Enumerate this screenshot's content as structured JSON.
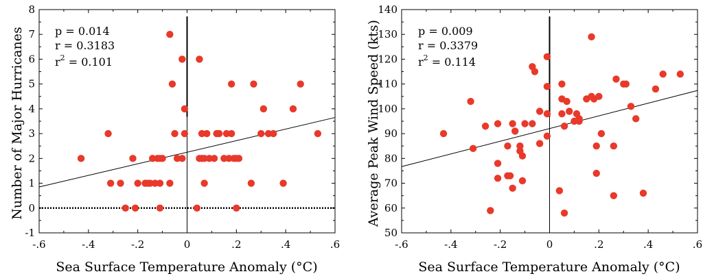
{
  "colors": {
    "point": "#e8392a",
    "axis": "#000000",
    "background": "#ffffff"
  },
  "chart_data": [
    {
      "type": "scatter",
      "xlabel": "Sea Surface Temperature Anomaly (°C)",
      "ylabel": "Number of Major Hurricanes",
      "xlim": [
        -0.6,
        0.6
      ],
      "ylim": [
        -1,
        8
      ],
      "xticks": [
        "-.6",
        "-.4",
        "-.2",
        "0",
        ".2",
        ".4",
        ".6"
      ],
      "yticks": [
        "-1",
        "0",
        "1",
        "2",
        "3",
        "4",
        "5",
        "6",
        "7",
        "8"
      ],
      "grid": false,
      "stats": {
        "p": "p = 0.014",
        "r": "r = 0.3183",
        "r2_prefix": "r",
        "r2_sup": "2",
        "r2_value": " = 0.101"
      },
      "regression": {
        "x": [
          -0.6,
          0.6
        ],
        "y": [
          0.85,
          3.65
        ]
      },
      "zero_line_style": "dotted",
      "points": [
        [
          -0.43,
          2
        ],
        [
          -0.32,
          3
        ],
        [
          -0.31,
          1
        ],
        [
          -0.27,
          1
        ],
        [
          -0.25,
          0
        ],
        [
          -0.22,
          2
        ],
        [
          -0.21,
          0
        ],
        [
          -0.2,
          1
        ],
        [
          -0.17,
          1
        ],
        [
          -0.16,
          1
        ],
        [
          -0.15,
          1
        ],
        [
          -0.14,
          2
        ],
        [
          -0.13,
          1
        ],
        [
          -0.12,
          2
        ],
        [
          -0.11,
          2
        ],
        [
          -0.1,
          2
        ],
        [
          -0.11,
          1
        ],
        [
          -0.11,
          0
        ],
        [
          -0.07,
          1
        ],
        [
          -0.07,
          7
        ],
        [
          -0.06,
          5
        ],
        [
          -0.05,
          3
        ],
        [
          -0.04,
          2
        ],
        [
          -0.02,
          6
        ],
        [
          -0.02,
          2
        ],
        [
          -0.01,
          4
        ],
        [
          -0.01,
          3
        ],
        [
          0.04,
          0
        ],
        [
          0.05,
          6
        ],
        [
          0.05,
          2
        ],
        [
          0.06,
          3
        ],
        [
          0.06,
          2
        ],
        [
          0.07,
          1
        ],
        [
          0.07,
          2
        ],
        [
          0.08,
          3
        ],
        [
          0.09,
          2
        ],
        [
          0.11,
          2
        ],
        [
          0.12,
          3
        ],
        [
          0.13,
          3
        ],
        [
          0.15,
          2
        ],
        [
          0.16,
          3
        ],
        [
          0.17,
          2
        ],
        [
          0.18,
          3
        ],
        [
          0.19,
          2
        ],
        [
          0.2,
          2
        ],
        [
          0.21,
          2
        ],
        [
          0.18,
          5
        ],
        [
          0.26,
          1
        ],
        [
          0.27,
          5
        ],
        [
          0.2,
          0
        ],
        [
          0.3,
          3
        ],
        [
          0.31,
          4
        ],
        [
          0.33,
          3
        ],
        [
          0.35,
          3
        ],
        [
          0.39,
          1
        ],
        [
          0.43,
          4
        ],
        [
          0.46,
          5
        ],
        [
          0.53,
          3
        ]
      ]
    },
    {
      "type": "scatter",
      "xlabel": "Sea Surface Temperature Anomaly (°C)",
      "ylabel": "Average Peak Wind Speed (kts)",
      "xlim": [
        -0.6,
        0.6
      ],
      "ylim": [
        50,
        140
      ],
      "xticks": [
        "-.6",
        "-.4",
        "-.2",
        "0",
        ".2",
        ".4",
        ".6"
      ],
      "yticks": [
        "50",
        "60",
        "70",
        "80",
        "90",
        "100",
        "110",
        "120",
        "130",
        "140"
      ],
      "grid": false,
      "stats": {
        "p": "p = 0.009",
        "r": "r = 0.3379",
        "r2_prefix": "r",
        "r2_sup": "2",
        "r2_value": " = 0.114"
      },
      "regression": {
        "x": [
          -0.6,
          0.6
        ],
        "y": [
          76.7,
          107.4
        ]
      },
      "points": [
        [
          -0.43,
          90
        ],
        [
          -0.32,
          103
        ],
        [
          -0.31,
          84
        ],
        [
          -0.26,
          93
        ],
        [
          -0.24,
          59
        ],
        [
          -0.21,
          94
        ],
        [
          -0.21,
          78
        ],
        [
          -0.21,
          72
        ],
        [
          -0.17,
          85
        ],
        [
          -0.17,
          73
        ],
        [
          -0.16,
          73
        ],
        [
          -0.15,
          68
        ],
        [
          -0.15,
          94
        ],
        [
          -0.14,
          91
        ],
        [
          -0.12,
          85
        ],
        [
          -0.12,
          83
        ],
        [
          -0.11,
          81
        ],
        [
          -0.11,
          71
        ],
        [
          -0.1,
          94
        ],
        [
          -0.07,
          94
        ],
        [
          -0.07,
          117
        ],
        [
          -0.06,
          115
        ],
        [
          -0.04,
          99
        ],
        [
          -0.04,
          86
        ],
        [
          -0.01,
          121
        ],
        [
          -0.01,
          109
        ],
        [
          -0.01,
          98
        ],
        [
          -0.01,
          89
        ],
        [
          0.04,
          67
        ],
        [
          0.05,
          110
        ],
        [
          0.05,
          104
        ],
        [
          0.05,
          98
        ],
        [
          0.06,
          93
        ],
        [
          0.06,
          58
        ],
        [
          0.07,
          103
        ],
        [
          0.08,
          99
        ],
        [
          0.1,
          95
        ],
        [
          0.11,
          98
        ],
        [
          0.12,
          96
        ],
        [
          0.12,
          95
        ],
        [
          0.15,
          104
        ],
        [
          0.17,
          129
        ],
        [
          0.17,
          105
        ],
        [
          0.18,
          104
        ],
        [
          0.19,
          85
        ],
        [
          0.19,
          74
        ],
        [
          0.2,
          105
        ],
        [
          0.21,
          90
        ],
        [
          0.26,
          85
        ],
        [
          0.26,
          65
        ],
        [
          0.27,
          112
        ],
        [
          0.3,
          110
        ],
        [
          0.31,
          110
        ],
        [
          0.33,
          101
        ],
        [
          0.35,
          96
        ],
        [
          0.38,
          66
        ],
        [
          0.43,
          108
        ],
        [
          0.46,
          114
        ],
        [
          0.53,
          114
        ]
      ]
    }
  ]
}
